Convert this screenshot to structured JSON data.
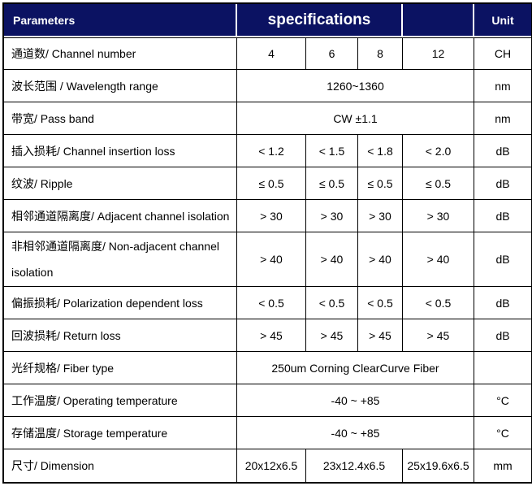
{
  "colors": {
    "header_bg": "#0b1262",
    "header_text": "#ffffff",
    "border": "#000000",
    "body_text": "#000000"
  },
  "header": {
    "parameters": "Parameters",
    "specifications": "specifications",
    "unit": "Unit"
  },
  "rows": [
    {
      "label": "通道数/ Channel number",
      "values": [
        "4",
        "6",
        "8",
        "12"
      ],
      "colspans": [
        1,
        1,
        1,
        1
      ],
      "unit": "CH"
    },
    {
      "label": "波长范围 / Wavelength range",
      "values": [
        "1260~1360"
      ],
      "colspans": [
        4
      ],
      "unit": "nm"
    },
    {
      "label": "带宽/ Pass band",
      "values": [
        "CW ±1.1"
      ],
      "colspans": [
        4
      ],
      "unit": "nm"
    },
    {
      "label": "插入损耗/ Channel insertion loss",
      "values": [
        "< 1.2",
        "< 1.5",
        "< 1.8",
        "< 2.0"
      ],
      "colspans": [
        1,
        1,
        1,
        1
      ],
      "unit": "dB"
    },
    {
      "label": "纹波/ Ripple",
      "values": [
        "≤ 0.5",
        "≤ 0.5",
        "≤ 0.5",
        "≤ 0.5"
      ],
      "colspans": [
        1,
        1,
        1,
        1
      ],
      "unit": "dB"
    },
    {
      "label": "相邻通道隔离度/ Adjacent channel isolation",
      "values": [
        "> 30",
        "> 30",
        "> 30",
        "> 30"
      ],
      "colspans": [
        1,
        1,
        1,
        1
      ],
      "unit": "dB"
    },
    {
      "label": "非相邻通道隔离度/ Non-adjacent channel isolation",
      "values": [
        "> 40",
        "> 40",
        "> 40",
        "> 40"
      ],
      "colspans": [
        1,
        1,
        1,
        1
      ],
      "unit": "dB",
      "tall": true
    },
    {
      "label": "偏振损耗/ Polarization dependent loss",
      "values": [
        "< 0.5",
        "< 0.5",
        "< 0.5",
        "< 0.5"
      ],
      "colspans": [
        1,
        1,
        1,
        1
      ],
      "unit": "dB"
    },
    {
      "label": "回波损耗/ Return loss",
      "values": [
        "> 45",
        "> 45",
        "> 45",
        "> 45"
      ],
      "colspans": [
        1,
        1,
        1,
        1
      ],
      "unit": "dB"
    },
    {
      "label": "光纤规格/ Fiber type",
      "values": [
        "250um Corning ClearCurve Fiber"
      ],
      "colspans": [
        4
      ],
      "unit": ""
    },
    {
      "label": "工作温度/ Operating temperature",
      "values": [
        "-40 ~ +85"
      ],
      "colspans": [
        4
      ],
      "unit": "°C"
    },
    {
      "label": "存储温度/ Storage temperature",
      "values": [
        "-40 ~ +85"
      ],
      "colspans": [
        4
      ],
      "unit": "°C"
    },
    {
      "label": "尺寸/ Dimension",
      "values": [
        "20x12x6.5",
        "23x12.4x6.5",
        "25x19.6x6.5"
      ],
      "colspans": [
        1,
        2,
        1
      ],
      "unit": "mm"
    }
  ]
}
